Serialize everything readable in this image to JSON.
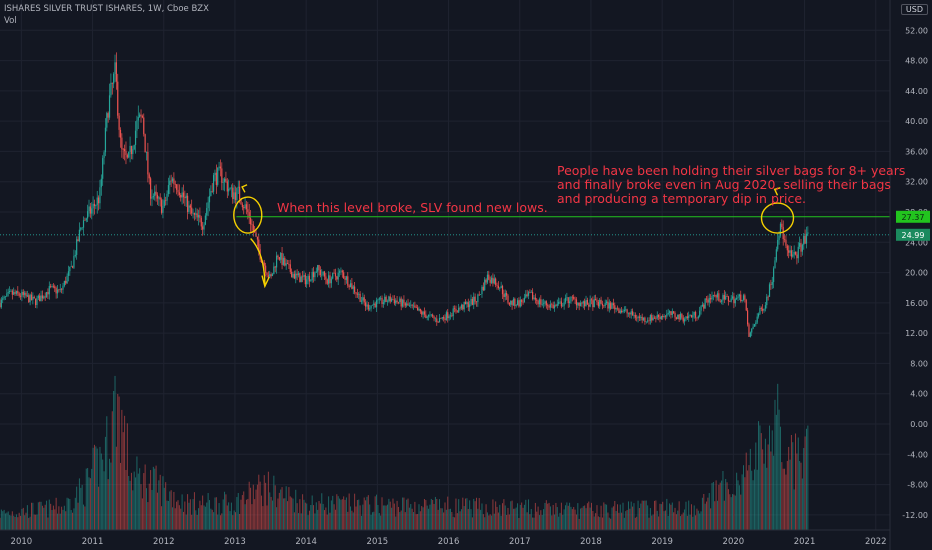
{
  "legend": {
    "symbol_line": "ISHARES SILVER TRUST ISHARES, 1W, Cboe BZX",
    "volume_label": "Vol"
  },
  "currency": "USD",
  "annotations": {
    "level_note": "When this level broke, SLV found new lows.",
    "holders_note": [
      "People have been holding their silver bags for 8+ years",
      "and finally broke even in Aug 2020, selling their bags",
      "and producing a temporary dip in price."
    ]
  },
  "colors": {
    "background": "#131722",
    "up": "#26a69a",
    "down": "#ef5350",
    "grid": "#1f2330",
    "level_line": "#22c41e",
    "annotation": "#f23645",
    "markup": "#f5d000",
    "current_price_tag": "#1b8a5e",
    "level_tag": "#22c41e"
  },
  "chart_data": {
    "type": "candlestick",
    "title": "ISHARES SILVER TRUST ISHARES, 1W, Cboe BZX",
    "price_axis": {
      "ticks": [
        52,
        48,
        44,
        40,
        36,
        32,
        28,
        24,
        20,
        16,
        12,
        8,
        4,
        0,
        -4,
        -8,
        -12
      ],
      "tick_labels": [
        "52.00",
        "48.00",
        "44.00",
        "40.00",
        "36.00",
        "32.00",
        "28.00",
        "24.00",
        "20.00",
        "16.00",
        "12.00",
        "8.00",
        "4.00",
        "0.00",
        "-4.00",
        "-8.00",
        "-12.00"
      ],
      "range": [
        -14,
        56
      ]
    },
    "time_axis": {
      "labels": [
        "2010",
        "2011",
        "2012",
        "2013",
        "2014",
        "2015",
        "2016",
        "2017",
        "2018",
        "2019",
        "2020",
        "2021",
        "2022"
      ],
      "range": [
        2009.7,
        2022.2
      ]
    },
    "price_path": [
      [
        2009.7,
        16.0
      ],
      [
        2009.85,
        17.2
      ],
      [
        2010.0,
        17.0
      ],
      [
        2010.2,
        16.2
      ],
      [
        2010.4,
        17.8
      ],
      [
        2010.55,
        17.5
      ],
      [
        2010.7,
        20.5
      ],
      [
        2010.85,
        26.5
      ],
      [
        2011.0,
        28.5
      ],
      [
        2011.1,
        30.0
      ],
      [
        2011.22,
        42.0
      ],
      [
        2011.32,
        46.5
      ],
      [
        2011.4,
        36.0
      ],
      [
        2011.5,
        34.5
      ],
      [
        2011.62,
        39.5
      ],
      [
        2011.7,
        40.5
      ],
      [
        2011.8,
        31.0
      ],
      [
        2011.9,
        29.5
      ],
      [
        2012.0,
        28.5
      ],
      [
        2012.1,
        32.5
      ],
      [
        2012.2,
        31.5
      ],
      [
        2012.4,
        27.5
      ],
      [
        2012.55,
        26.5
      ],
      [
        2012.7,
        32.5
      ],
      [
        2012.8,
        33.0
      ],
      [
        2012.95,
        30.5
      ],
      [
        2013.05,
        30.5
      ],
      [
        2013.2,
        27.5
      ],
      [
        2013.35,
        22.5
      ],
      [
        2013.5,
        19.0
      ],
      [
        2013.6,
        22.5
      ],
      [
        2013.7,
        21.0
      ],
      [
        2013.85,
        19.5
      ],
      [
        2014.0,
        19.0
      ],
      [
        2014.15,
        20.5
      ],
      [
        2014.3,
        19.0
      ],
      [
        2014.5,
        20.0
      ],
      [
        2014.7,
        17.5
      ],
      [
        2014.85,
        15.5
      ],
      [
        2015.0,
        16.0
      ],
      [
        2015.2,
        16.5
      ],
      [
        2015.45,
        15.5
      ],
      [
        2015.65,
        14.5
      ],
      [
        2015.85,
        13.7
      ],
      [
        2016.0,
        14.5
      ],
      [
        2016.2,
        15.5
      ],
      [
        2016.4,
        16.5
      ],
      [
        2016.55,
        19.5
      ],
      [
        2016.7,
        18.5
      ],
      [
        2016.85,
        16.0
      ],
      [
        2017.0,
        16.0
      ],
      [
        2017.15,
        17.0
      ],
      [
        2017.3,
        16.0
      ],
      [
        2017.5,
        15.5
      ],
      [
        2017.7,
        16.5
      ],
      [
        2017.9,
        15.8
      ],
      [
        2018.05,
        16.0
      ],
      [
        2018.3,
        15.6
      ],
      [
        2018.55,
        14.5
      ],
      [
        2018.75,
        13.8
      ],
      [
        2018.95,
        14.2
      ],
      [
        2019.1,
        14.5
      ],
      [
        2019.3,
        14.0
      ],
      [
        2019.5,
        14.5
      ],
      [
        2019.6,
        16.0
      ],
      [
        2019.7,
        17.0
      ],
      [
        2019.85,
        16.5
      ],
      [
        2020.05,
        16.5
      ],
      [
        2020.15,
        17.0
      ],
      [
        2020.22,
        11.5
      ],
      [
        2020.35,
        14.5
      ],
      [
        2020.45,
        16.0
      ],
      [
        2020.55,
        19.5
      ],
      [
        2020.62,
        25.0
      ],
      [
        2020.68,
        26.0
      ],
      [
        2020.75,
        22.5
      ],
      [
        2020.85,
        22.0
      ],
      [
        2020.95,
        23.5
      ],
      [
        2021.05,
        24.99
      ]
    ],
    "volume_path": [
      [
        2009.7,
        0.5
      ],
      [
        2010.6,
        0.7
      ],
      [
        2010.9,
        1.3
      ],
      [
        2011.2,
        2.5
      ],
      [
        2011.34,
        4.0
      ],
      [
        2011.55,
        1.6
      ],
      [
        2011.8,
        1.5
      ],
      [
        2012.3,
        0.8
      ],
      [
        2013.0,
        0.8
      ],
      [
        2013.4,
        1.3
      ],
      [
        2014.0,
        0.8
      ],
      [
        2016.0,
        0.7
      ],
      [
        2018.0,
        0.6
      ],
      [
        2019.5,
        0.7
      ],
      [
        2020.2,
        1.8
      ],
      [
        2020.6,
        3.2
      ],
      [
        2020.8,
        2.0
      ],
      [
        2021.05,
        2.2
      ]
    ],
    "level_price": 27.37,
    "last_price": 24.99,
    "level_label": "27.37",
    "last_price_label": "24.99"
  }
}
